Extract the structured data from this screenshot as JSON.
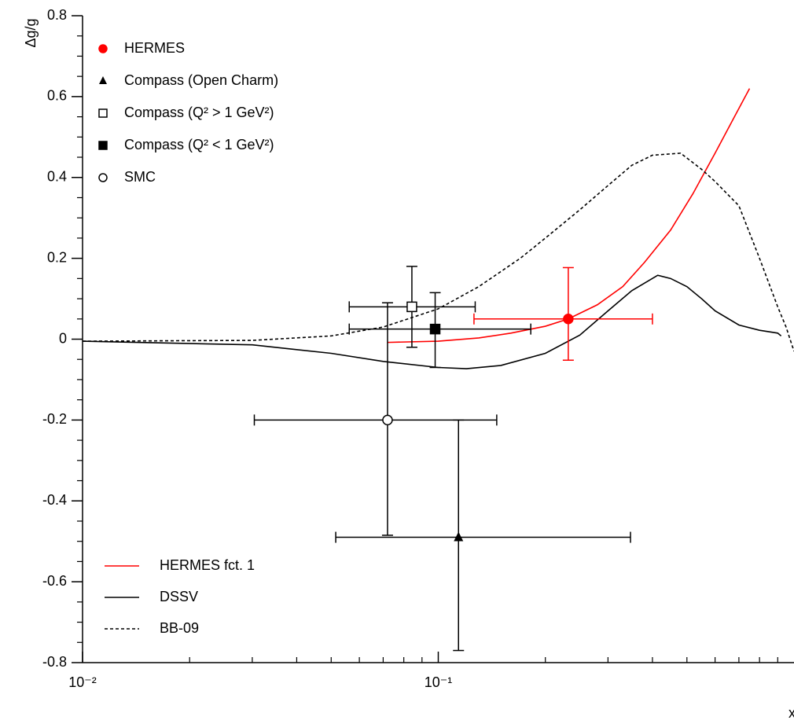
{
  "chart_data": {
    "type": "scatter",
    "xlabel": "x",
    "ylabel": "Δg/g",
    "xscale": "log",
    "xlim": [
      0.01,
      1
    ],
    "ylim": [
      -0.8,
      0.8
    ],
    "xticks": [
      {
        "value": 0.01,
        "label": "10⁻²"
      },
      {
        "value": 0.1,
        "label": "10⁻¹"
      }
    ],
    "xminorticks": [
      0.02,
      0.03,
      0.04,
      0.05,
      0.06,
      0.07,
      0.08,
      0.09,
      0.2,
      0.3,
      0.4,
      0.5,
      0.6,
      0.7,
      0.8,
      0.9
    ],
    "yticks": [
      -0.8,
      -0.6,
      -0.4,
      -0.2,
      0,
      0.2,
      0.4,
      0.6,
      0.8
    ],
    "yminorticks": [
      -0.75,
      -0.7,
      -0.65,
      -0.55,
      -0.5,
      -0.45,
      -0.35,
      -0.3,
      -0.25,
      -0.15,
      -0.1,
      -0.05,
      0.05,
      0.1,
      0.15,
      0.25,
      0.3,
      0.35,
      0.45,
      0.5,
      0.55,
      0.65,
      0.7,
      0.75
    ],
    "points": [
      {
        "name": "HERMES",
        "color": "#ff0000",
        "marker": "filled-circle",
        "x": 0.232,
        "y": 0.05,
        "xlow": 0.126,
        "xhigh": 0.4,
        "ylow": -0.052,
        "yhigh": 0.177
      },
      {
        "name": "Compass (Open Charm)",
        "color": "#000000",
        "marker": "filled-triangle",
        "x": 0.114,
        "y": -0.49,
        "xlow": 0.0515,
        "xhigh": 0.347,
        "ylow": -0.77,
        "yhigh": -0.2
      },
      {
        "name": "Compass (Q² > 1 GeV²)",
        "color": "#000000",
        "marker": "open-square",
        "x": 0.0843,
        "y": 0.08,
        "xlow": 0.0562,
        "xhigh": 0.127,
        "ylow": -0.02,
        "yhigh": 0.18
      },
      {
        "name": "Compass (Q² < 1 GeV²)",
        "color": "#000000",
        "marker": "filled-square",
        "x": 0.098,
        "y": 0.025,
        "xlow": 0.0562,
        "xhigh": 0.182,
        "ylow": -0.07,
        "yhigh": 0.115
      },
      {
        "name": "SMC",
        "color": "#000000",
        "marker": "open-circle",
        "x": 0.072,
        "y": -0.2,
        "xlow": 0.0304,
        "xhigh": 0.146,
        "ylow": -0.485,
        "yhigh": 0.09
      }
    ],
    "lines": [
      {
        "name": "HERMES fct. 1",
        "color": "#ff0000",
        "dash": "solid",
        "x": [
          0.072,
          0.1,
          0.13,
          0.16,
          0.2,
          0.232,
          0.28,
          0.33,
          0.38,
          0.45,
          0.52,
          0.6,
          0.68,
          0.75
        ],
        "y": [
          -0.008,
          -0.005,
          0.003,
          0.015,
          0.032,
          0.05,
          0.085,
          0.13,
          0.19,
          0.27,
          0.36,
          0.46,
          0.55,
          0.62
        ]
      },
      {
        "name": "DSSV",
        "color": "#000000",
        "dash": "solid",
        "x": [
          0.01,
          0.03,
          0.05,
          0.07,
          0.1,
          0.12,
          0.15,
          0.2,
          0.25,
          0.3,
          0.35,
          0.414,
          0.45,
          0.5,
          0.55,
          0.6,
          0.7,
          0.8,
          0.9,
          0.92
        ],
        "y": [
          -0.005,
          -0.014,
          -0.035,
          -0.055,
          -0.07,
          -0.073,
          -0.065,
          -0.035,
          0.01,
          0.07,
          0.12,
          0.158,
          0.15,
          0.13,
          0.1,
          0.07,
          0.035,
          0.022,
          0.015,
          0.008
        ]
      },
      {
        "name": "BB-09",
        "color": "#000000",
        "dash": "dashed",
        "x": [
          0.01,
          0.03,
          0.05,
          0.07,
          0.1,
          0.13,
          0.17,
          0.2,
          0.25,
          0.3,
          0.35,
          0.4,
          0.48,
          0.55,
          0.6,
          0.7,
          0.8,
          0.9,
          0.95,
          1.0
        ],
        "y": [
          -0.005,
          -0.003,
          0.008,
          0.03,
          0.075,
          0.13,
          0.2,
          0.25,
          0.32,
          0.38,
          0.43,
          0.455,
          0.46,
          0.42,
          0.39,
          0.33,
          0.2,
          0.08,
          0.03,
          -0.03
        ]
      }
    ]
  }
}
